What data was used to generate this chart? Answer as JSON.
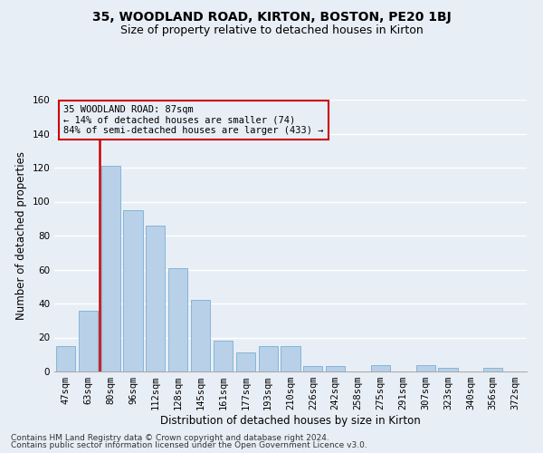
{
  "title1": "35, WOODLAND ROAD, KIRTON, BOSTON, PE20 1BJ",
  "title2": "Size of property relative to detached houses in Kirton",
  "xlabel": "Distribution of detached houses by size in Kirton",
  "ylabel": "Number of detached properties",
  "categories": [
    "47sqm",
    "63sqm",
    "80sqm",
    "96sqm",
    "112sqm",
    "128sqm",
    "145sqm",
    "161sqm",
    "177sqm",
    "193sqm",
    "210sqm",
    "226sqm",
    "242sqm",
    "258sqm",
    "275sqm",
    "291sqm",
    "307sqm",
    "323sqm",
    "340sqm",
    "356sqm",
    "372sqm"
  ],
  "values": [
    15,
    36,
    121,
    95,
    86,
    61,
    42,
    18,
    11,
    15,
    15,
    3,
    3,
    0,
    4,
    0,
    4,
    2,
    0,
    2,
    0
  ],
  "bar_color": "#b8d0e8",
  "bar_edgecolor": "#7aafd4",
  "subject_line_color": "#cc0000",
  "annotation_text": "35 WOODLAND ROAD: 87sqm\n← 14% of detached houses are smaller (74)\n84% of semi-detached houses are larger (433) →",
  "annotation_box_color": "#cc0000",
  "ylim": [
    0,
    160
  ],
  "yticks": [
    0,
    20,
    40,
    60,
    80,
    100,
    120,
    140,
    160
  ],
  "background_color": "#e8eef5",
  "grid_color": "#ffffff",
  "footer1": "Contains HM Land Registry data © Crown copyright and database right 2024.",
  "footer2": "Contains public sector information licensed under the Open Government Licence v3.0.",
  "title1_fontsize": 10,
  "title2_fontsize": 9,
  "annotation_fontsize": 7.5,
  "axis_label_fontsize": 8.5,
  "tick_fontsize": 7.5,
  "footer_fontsize": 6.5
}
